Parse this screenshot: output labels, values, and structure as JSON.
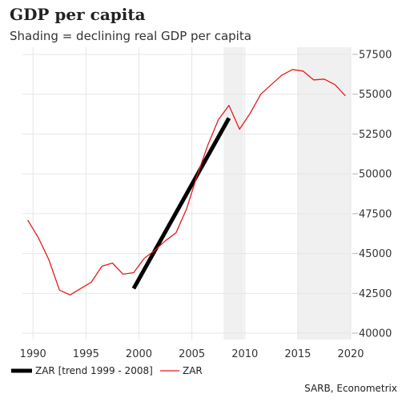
{
  "chart_data": {
    "type": "line",
    "title": "GDP per capita",
    "subtitle": "Shading = declining real GDP per capita",
    "source": "SARB, Econometrix",
    "xlim": [
      1989,
      2020
    ],
    "ylim": [
      39600,
      57950
    ],
    "x_ticks": [
      1990,
      1995,
      2000,
      2005,
      2010,
      2015,
      2020
    ],
    "y_ticks": [
      40000,
      42500,
      45000,
      47500,
      50000,
      52500,
      55000,
      57500
    ],
    "grid": true,
    "legend_position": "bottom-left",
    "shading": [
      [
        2008,
        2009.9
      ],
      [
        2015,
        2020
      ]
    ],
    "shading_color": "#f0f0f0",
    "series": [
      {
        "name": "ZAR [trend 1999 - 2008]",
        "color": "#000000",
        "x": [
          1999.5,
          2008.5
        ],
        "y": [
          42800,
          53500
        ]
      },
      {
        "name": "ZAR",
        "color": "#e8191d",
        "x": [
          1989.5,
          1990.5,
          1991.5,
          1992.5,
          1993.5,
          1994.5,
          1995.5,
          1996.5,
          1997.5,
          1998.5,
          1999.5,
          2000.5,
          2001.5,
          2002.5,
          2003.5,
          2004.5,
          2005.5,
          2006.5,
          2007.5,
          2008.5,
          2009.5,
          2010.5,
          2011.5,
          2012.5,
          2013.5,
          2014.5,
          2015.5,
          2016.5,
          2017.5,
          2018.5,
          2019.5
        ],
        "y": [
          47100,
          46000,
          44600,
          42700,
          42400,
          42800,
          43200,
          44200,
          44400,
          43700,
          43800,
          44700,
          45200,
          45800,
          46300,
          47800,
          49900,
          51800,
          53400,
          54300,
          52800,
          53800,
          55000,
          55600,
          56200,
          56550,
          56450,
          55900,
          55950,
          55600,
          54900
        ]
      }
    ]
  }
}
